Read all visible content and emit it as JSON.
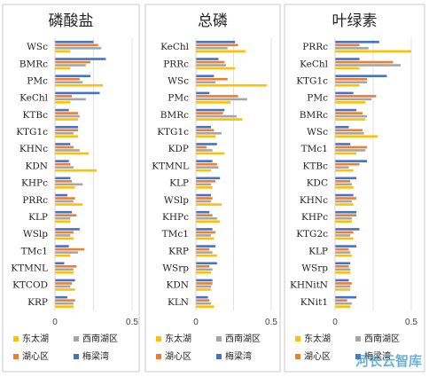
{
  "colors": {
    "东太湖": "#FFC000",
    "西南湖区": "#A5A5A5",
    "湖心区": "#ED7D31",
    "梅梁湾": "#4472C4"
  },
  "watermark": "河长云智库",
  "chart_data": [
    {
      "type": "bar",
      "orientation": "horizontal",
      "title": "磷酸盐",
      "xlim": [
        0,
        0.5
      ],
      "xticks": [
        "0",
        "0.5"
      ],
      "series_order": [
        "东太湖",
        "西南湖区",
        "湖心区",
        "梅梁湾"
      ],
      "legend": [
        "东太湖",
        "西南湖区",
        "湖心区",
        "梅梁湾"
      ],
      "categories": [
        "WSc",
        "BMRc",
        "PMc",
        "KeChl",
        "KTBc",
        "KTG1c",
        "KHNc",
        "KDN",
        "KHPc",
        "PRRc",
        "KLP",
        "WSlp",
        "TMc1",
        "KTMNL",
        "KTCOD",
        "KRP"
      ],
      "series": [
        {
          "name": "东太湖",
          "values": [
            0.1,
            0.1,
            0.31,
            0.1,
            0.15,
            0.15,
            0.22,
            0.27,
            0.13,
            0.18,
            0.1,
            0.12,
            0.1,
            0.12,
            0.13,
            0.12
          ]
        },
        {
          "name": "西南湖区",
          "values": [
            0.3,
            0.2,
            0.18,
            0.2,
            0.16,
            0.12,
            0.16,
            0.12,
            0.18,
            0.12,
            0.1,
            0.1,
            0.15,
            0.12,
            0.1,
            0.12
          ]
        },
        {
          "name": "湖心区",
          "values": [
            0.28,
            0.23,
            0.16,
            0.11,
            0.15,
            0.15,
            0.12,
            0.1,
            0.11,
            0.13,
            0.14,
            0.12,
            0.19,
            0.14,
            0.11,
            0.13
          ]
        },
        {
          "name": "梅梁湾",
          "values": [
            0.25,
            0.33,
            0.23,
            0.29,
            0.09,
            0.15,
            0.1,
            0.09,
            0.1,
            0.08,
            0.11,
            0.16,
            0.09,
            0.06,
            0.13,
            0.08
          ]
        }
      ]
    },
    {
      "type": "bar",
      "orientation": "horizontal",
      "title": "总磷",
      "xlim": [
        0,
        0.5
      ],
      "xticks": [
        "0",
        "0.5"
      ],
      "series_order": [
        "东太湖",
        "西南湖区",
        "湖心区",
        "梅梁湾"
      ],
      "legend": [
        "东太湖",
        "西南湖区",
        "湖心区",
        "梅梁湾"
      ],
      "categories": [
        "KeChl",
        "PRRc",
        "WSc",
        "PMc",
        "BMRc",
        "KTG1c",
        "KDP",
        "KTMNL",
        "KLP",
        "WSlp",
        "KHPc",
        "TMc1",
        "KRP",
        "WSrp",
        "KDN",
        "KLN"
      ],
      "series": [
        {
          "name": "东太湖",
          "values": [
            0.33,
            0.26,
            0.47,
            0.23,
            0.31,
            0.13,
            0.19,
            0.1,
            0.11,
            0.17,
            0.16,
            0.12,
            0.14,
            0.1,
            0.1,
            0.12
          ]
        },
        {
          "name": "西南湖区",
          "values": [
            0.21,
            0.2,
            0.13,
            0.34,
            0.27,
            0.17,
            0.11,
            0.15,
            0.1,
            0.1,
            0.14,
            0.1,
            0.11,
            0.11,
            0.1,
            0.1
          ]
        },
        {
          "name": "湖心区",
          "values": [
            0.28,
            0.19,
            0.21,
            0.28,
            0.18,
            0.12,
            0.07,
            0.14,
            0.13,
            0.11,
            0.11,
            0.13,
            0.09,
            0.09,
            0.11,
            0.09
          ]
        },
        {
          "name": "梅梁湾",
          "values": [
            0.26,
            0.15,
            0.12,
            0.09,
            0.19,
            0.1,
            0.14,
            0.11,
            0.16,
            0.1,
            0.09,
            0.11,
            0.13,
            0.14,
            0.11,
            0.08
          ]
        }
      ]
    },
    {
      "type": "bar",
      "orientation": "horizontal",
      "title": "叶绿素",
      "xlim": [
        0,
        0.5
      ],
      "xticks": [
        "0",
        "0.5"
      ],
      "series_order": [
        "东太湖",
        "西南湖区",
        "湖心区",
        "梅梁湾"
      ],
      "legend": [
        "东太湖",
        "西南湖区",
        "湖心区",
        "梅梁湾"
      ],
      "categories": [
        "PRRc",
        "KeChl",
        "KTG1c",
        "PMc",
        "BMRc",
        "WSc",
        "TMc1",
        "KTBc",
        "KDC",
        "KHNc",
        "KHPc",
        "KTG2c",
        "KLP",
        "WSrp",
        "KHNitN",
        "KNit1"
      ],
      "series": [
        {
          "name": "东太湖",
          "values": [
            0.5,
            0.16,
            0.16,
            0.2,
            0.2,
            0.28,
            0.14,
            0.12,
            0.12,
            0.12,
            0.11,
            0.12,
            0.11,
            0.1,
            0.1,
            0.1
          ]
        },
        {
          "name": "西南湖区",
          "values": [
            0.22,
            0.43,
            0.21,
            0.24,
            0.21,
            0.19,
            0.2,
            0.09,
            0.11,
            0.11,
            0.11,
            0.1,
            0.1,
            0.1,
            0.1,
            0.11
          ]
        },
        {
          "name": "湖心区",
          "values": [
            0.16,
            0.38,
            0.21,
            0.27,
            0.18,
            0.18,
            0.21,
            0.16,
            0.1,
            0.14,
            0.14,
            0.12,
            0.09,
            0.09,
            0.11,
            0.08
          ]
        },
        {
          "name": "梅梁湾",
          "values": [
            0.29,
            0.16,
            0.34,
            0.12,
            0.14,
            0.09,
            0.1,
            0.21,
            0.14,
            0.12,
            0.14,
            0.16,
            0.14,
            0.1,
            0.09,
            0.14
          ]
        }
      ]
    }
  ]
}
